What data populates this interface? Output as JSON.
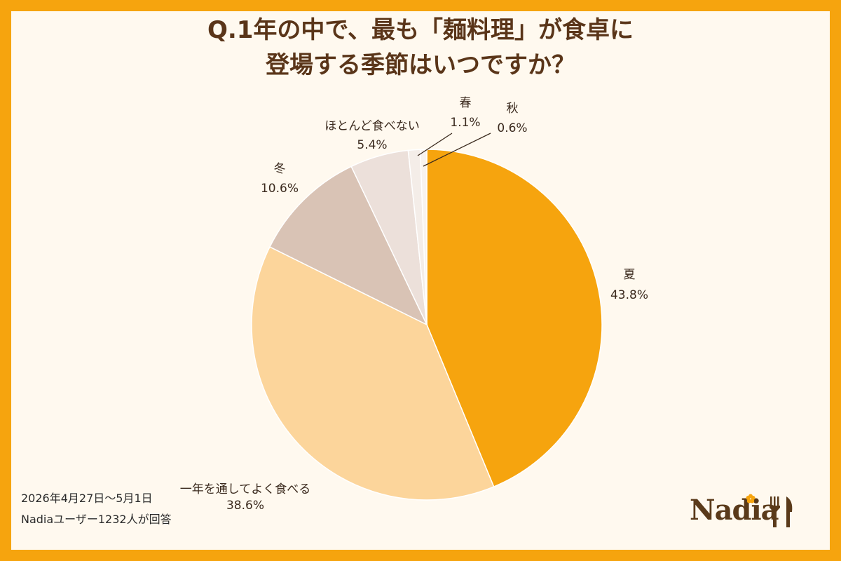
{
  "title": {
    "line1": "Q.1年の中で、最も「麺料理」が食卓に",
    "line2": "登場する季節はいつですか？"
  },
  "chart_data": {
    "type": "pie",
    "start_angle_deg": 0,
    "direction": "clockwise",
    "slices": [
      {
        "label": "夏",
        "value": 43.8,
        "display": "43.8%",
        "color": "#F6A40E"
      },
      {
        "label": "一年を通してよく食べる",
        "value": 38.6,
        "display": "38.6%",
        "color": "#FCD59B"
      },
      {
        "label": "冬",
        "value": 10.6,
        "display": "10.6%",
        "color": "#D9C3B5"
      },
      {
        "label": "ほとんど食べない",
        "value": 5.4,
        "display": "5.4%",
        "color": "#ECE0DA"
      },
      {
        "label": "春",
        "value": 1.1,
        "display": "1.1%",
        "color": "#F4EDE8"
      },
      {
        "label": "秋",
        "value": 0.6,
        "display": "0.6%",
        "color": "#F8F3EF"
      }
    ]
  },
  "footer": {
    "period": "2026年4月27日～5月1日",
    "respondents": "Nadiaユーザー1232人が回答"
  },
  "logo": {
    "text": "Nadia",
    "icon": "fork-knife-icon"
  }
}
